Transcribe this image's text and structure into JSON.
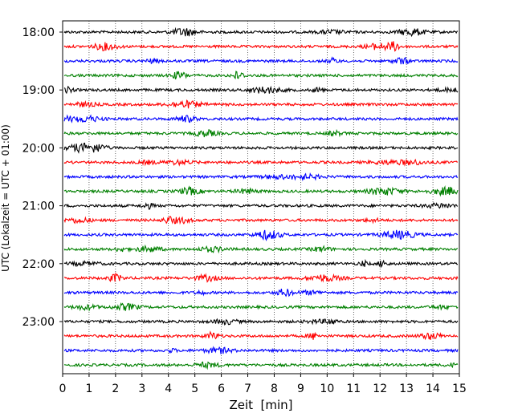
{
  "chart_data": {
    "type": "line",
    "title": "",
    "xlabel": "Zeit  [min]",
    "ylabel": "UTC (Lokalzeit = UTC + 01:00)",
    "xlim": [
      0,
      15
    ],
    "x_ticks": [
      "0",
      "1",
      "2",
      "3",
      "4",
      "5",
      "6",
      "7",
      "8",
      "9",
      "10",
      "11",
      "12",
      "13",
      "14",
      "15"
    ],
    "y_ticks": [
      "18:00",
      "19:00",
      "20:00",
      "21:00",
      "22:00",
      "23:00"
    ],
    "grid": "vertical dotted lines at each minute",
    "trace_interval_minutes": 15,
    "color_cycle": [
      "#000000",
      "#ff0000",
      "#0000ff",
      "#008000"
    ],
    "series": [
      {
        "start": "18:00",
        "color": "#000000"
      },
      {
        "start": "18:15",
        "color": "#ff0000"
      },
      {
        "start": "18:30",
        "color": "#0000ff"
      },
      {
        "start": "18:45",
        "color": "#008000"
      },
      {
        "start": "19:00",
        "color": "#000000"
      },
      {
        "start": "19:15",
        "color": "#ff0000"
      },
      {
        "start": "19:30",
        "color": "#0000ff"
      },
      {
        "start": "19:45",
        "color": "#008000"
      },
      {
        "start": "20:00",
        "color": "#000000"
      },
      {
        "start": "20:15",
        "color": "#ff0000"
      },
      {
        "start": "20:30",
        "color": "#0000ff"
      },
      {
        "start": "20:45",
        "color": "#008000"
      },
      {
        "start": "21:00",
        "color": "#000000"
      },
      {
        "start": "21:15",
        "color": "#ff0000"
      },
      {
        "start": "21:30",
        "color": "#0000ff"
      },
      {
        "start": "21:45",
        "color": "#008000"
      },
      {
        "start": "22:00",
        "color": "#000000"
      },
      {
        "start": "22:15",
        "color": "#ff0000"
      },
      {
        "start": "22:30",
        "color": "#0000ff"
      },
      {
        "start": "22:45",
        "color": "#008000"
      },
      {
        "start": "23:00",
        "color": "#000000"
      },
      {
        "start": "23:15",
        "color": "#ff0000"
      },
      {
        "start": "23:30",
        "color": "#0000ff"
      },
      {
        "start": "23:45",
        "color": "#008000"
      }
    ]
  }
}
